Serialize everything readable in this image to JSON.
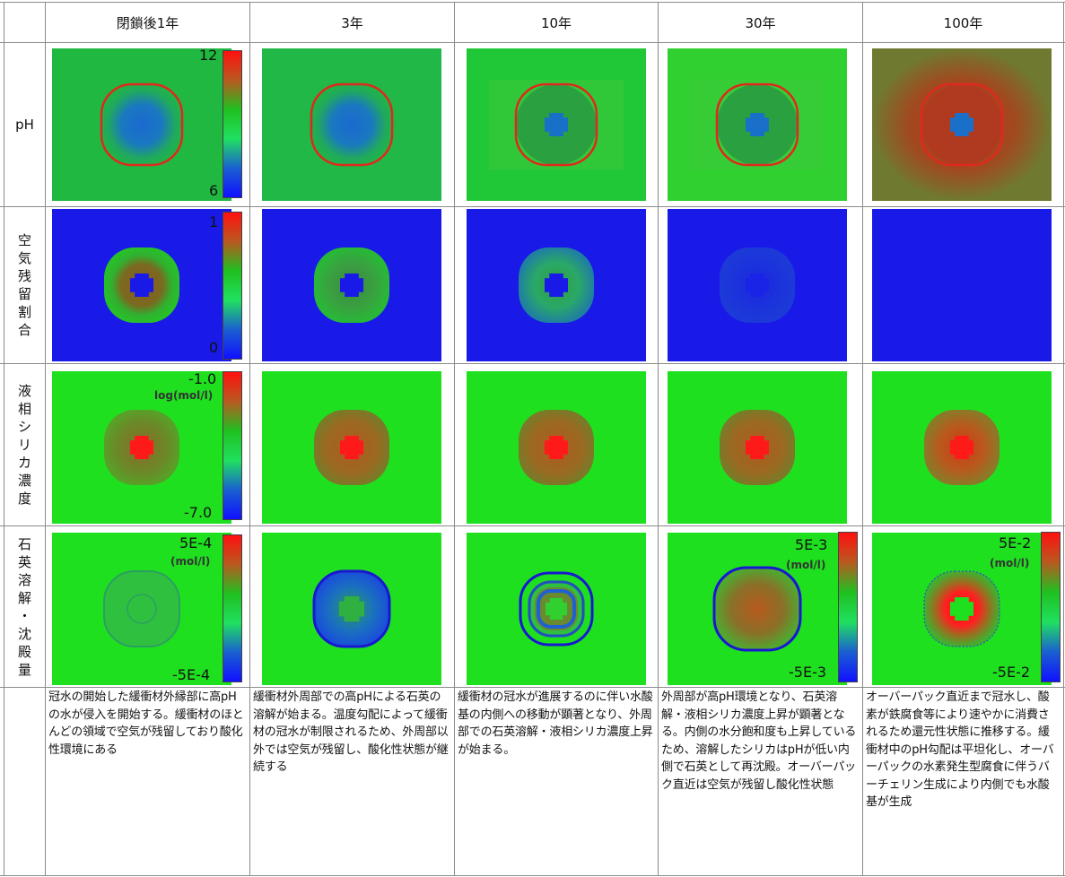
{
  "columns": [
    "閉鎖後1年",
    "3年",
    "10年",
    "30年",
    "100年"
  ],
  "rows": [
    {
      "id": "ph",
      "label": "pH"
    },
    {
      "id": "air",
      "label": "空気残留割合"
    },
    {
      "id": "silica",
      "label": "液相シリカ濃度"
    },
    {
      "id": "quartz",
      "label": "石英溶解・沈殿量"
    }
  ],
  "colorbars": {
    "ph": {
      "max": "12",
      "min": "6"
    },
    "air": {
      "max": "1",
      "min": "0"
    },
    "silica": {
      "max": "-1.0",
      "min": "-7.0",
      "unit": "log(mol/l)"
    },
    "quartz_1": {
      "max": "5E-4",
      "min": "-5E-4",
      "unit": "(mol/l)"
    },
    "quartz_30": {
      "max": "5E-3",
      "min": "-5E-3",
      "unit": "(mol/l)"
    },
    "quartz_100": {
      "max": "5E-2",
      "min": "-5E-2",
      "unit": "(mol/l)"
    }
  },
  "descriptions": [
    "冠水の開始した緩衝材外縁部に高pHの水が侵入を開始する。緩衝材のほとんどの領域で空気が残留しており酸化性環境にある",
    "緩衝材外周部での高pHによる石英の溶解が始まる。温度勾配によって緩衝材の冠水が制限されるため、外周部以外では空気が残留し、酸化性状態が継続する",
    "緩衝材の冠水が進展するのに伴い水酸基の内側への移動が顕著となり、外周部での石英溶解・液相シリカ濃度上昇が始まる。",
    "外周部が高pH環境となり、石英溶解・液相シリカ濃度上昇が顕著となる。内側の水分飽和度も上昇しているため、溶解したシリカはpHが低い内側で石英として再沈殿。オーバーパック直近は空気が残留し酸化性状態",
    "オーバーパック直近まで冠水し、酸素が鉄腐食等により速やかに消費されるため還元性状態に推移する。緩衝材中のpH勾配は平坦化し、オーバーパックの水素発生型腐食に伴うバーチェリン生成により内側でも水酸基が生成"
  ],
  "colors": {
    "green": "#1fe01f",
    "blue": "#1a1ae8",
    "red": "#ff1a1a",
    "ring_red": "#e0281e",
    "ring_blue": "#1818d0",
    "brown": "#8a6a2a",
    "colorbar_stops": [
      "#ff1010",
      "#b85a20",
      "#20c020",
      "#20e060",
      "#1a60d0",
      "#1010ff"
    ]
  }
}
